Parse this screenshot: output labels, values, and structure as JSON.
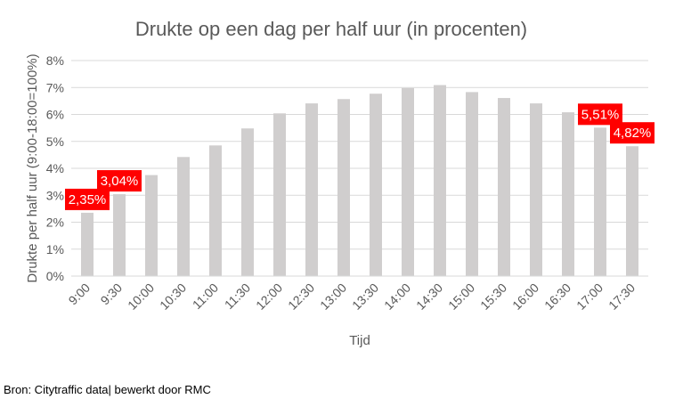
{
  "chart_data": {
    "type": "bar",
    "title": "Drukte op een dag per half uur (in procenten)",
    "xlabel": "Tijd",
    "ylabel": "Drukte per half uur (9:00-18:00=100%)",
    "categories": [
      "9:00",
      "9:30",
      "10:00",
      "10:30",
      "11:00",
      "11:30",
      "12:00",
      "12:30",
      "13:00",
      "13:30",
      "14:00",
      "14:30",
      "15:00",
      "15:30",
      "16:00",
      "16:30",
      "17:00",
      "17:30"
    ],
    "values": [
      2.35,
      3.04,
      3.75,
      4.42,
      4.85,
      5.48,
      6.04,
      6.41,
      6.57,
      6.77,
      6.98,
      7.09,
      6.83,
      6.61,
      6.41,
      6.08,
      5.51,
      4.82
    ],
    "ylim": [
      0,
      8
    ],
    "yticks": [
      "0%",
      "1%",
      "2%",
      "3%",
      "4%",
      "5%",
      "6%",
      "7%",
      "8%"
    ],
    "grid": true,
    "bar_color": "#d0cece",
    "label_color": "#ff0000",
    "data_labels": [
      {
        "category": "9:00",
        "text": "2,35%"
      },
      {
        "category": "9:30",
        "text": "3,04%"
      },
      {
        "category": "17:00",
        "text": "5,51%"
      },
      {
        "category": "17:30",
        "text": "4,82%"
      }
    ]
  },
  "source": "Bron: Citytraffic data| bewerkt door RMC"
}
